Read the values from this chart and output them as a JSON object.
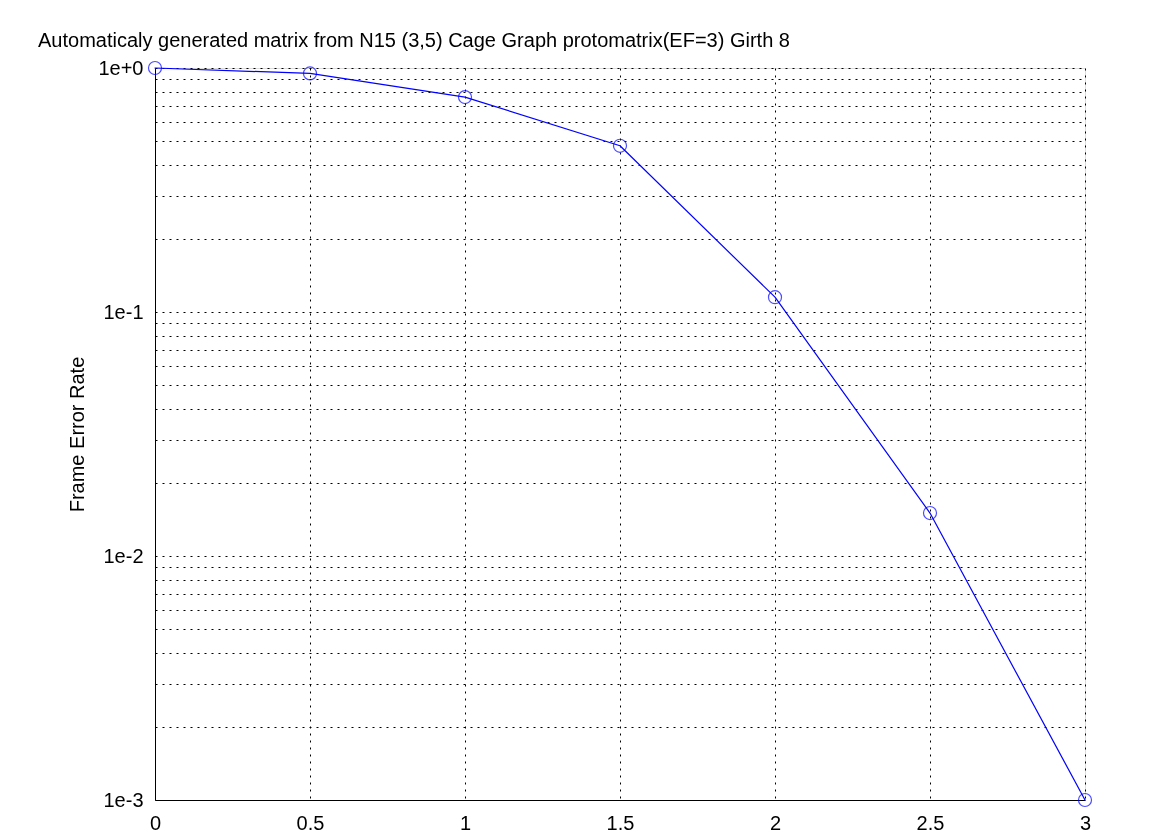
{
  "chart_data": {
    "type": "line",
    "title": "Automaticaly generated matrix from N15 (3,5) Cage Graph protomatrix(EF=3) Girth 8",
    "ylabel": "Frame Error Rate",
    "x": [
      0,
      0.5,
      1,
      1.5,
      2,
      2.5,
      3
    ],
    "series": [
      {
        "color": "#0000ff",
        "values": [
          1.0,
          0.95,
          0.76,
          0.48,
          0.115,
          0.015,
          0.001
        ]
      }
    ],
    "xlim": [
      0,
      3
    ],
    "xticks": [
      0,
      0.5,
      1,
      1.5,
      2,
      2.5,
      3
    ],
    "ylim": [
      0.001,
      1
    ],
    "yticks": [
      {
        "value": 0.001,
        "label": "1e-3"
      },
      {
        "value": 0.002,
        "label": null
      },
      {
        "value": 0.003,
        "label": null
      },
      {
        "value": 0.004,
        "label": null
      },
      {
        "value": 0.005,
        "label": null
      },
      {
        "value": 0.006,
        "label": null
      },
      {
        "value": 0.007,
        "label": null
      },
      {
        "value": 0.008,
        "label": null
      },
      {
        "value": 0.009,
        "label": null
      },
      {
        "value": 0.01,
        "label": "1e-2"
      },
      {
        "value": 0.02,
        "label": null
      },
      {
        "value": 0.03,
        "label": null
      },
      {
        "value": 0.04,
        "label": null
      },
      {
        "value": 0.05,
        "label": null
      },
      {
        "value": 0.06,
        "label": null
      },
      {
        "value": 0.07,
        "label": null
      },
      {
        "value": 0.08,
        "label": null
      },
      {
        "value": 0.09,
        "label": null
      },
      {
        "value": 0.1,
        "label": "1e-1"
      },
      {
        "value": 0.2,
        "label": null
      },
      {
        "value": 0.3,
        "label": null
      },
      {
        "value": 0.4,
        "label": null
      },
      {
        "value": 0.5,
        "label": null
      },
      {
        "value": 0.6,
        "label": null
      },
      {
        "value": 0.7,
        "label": null
      },
      {
        "value": 0.8,
        "label": null
      },
      {
        "value": 0.9,
        "label": null
      },
      {
        "value": 1,
        "label": "1e+0"
      }
    ],
    "log": "y",
    "grid": true,
    "marker": "circle",
    "line_style": "solid"
  }
}
